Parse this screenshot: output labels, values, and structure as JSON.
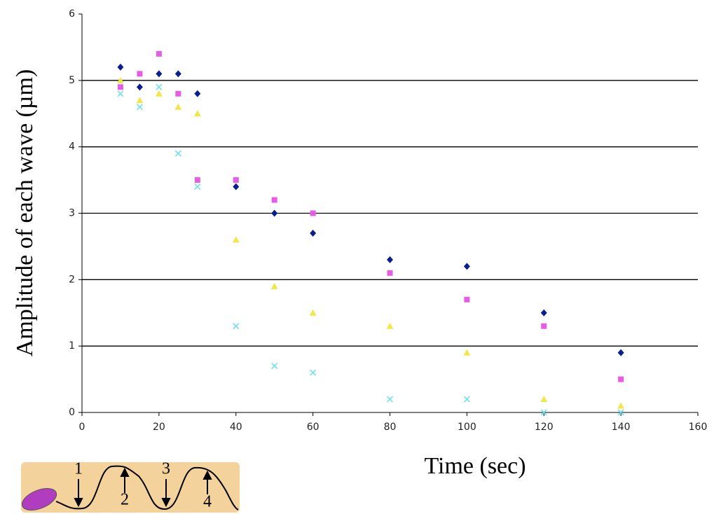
{
  "chart_data": {
    "type": "scatter",
    "x_label": "Time (sec)",
    "y_label": "Amplitude of each wave (µm)",
    "x": [
      10,
      15,
      20,
      25,
      30,
      40,
      50,
      60,
      80,
      100,
      120,
      140
    ],
    "series": [
      {
        "color": "#0a1f8f",
        "marker": "diamond",
        "values": [
          5.2,
          4.9,
          5.1,
          5.1,
          4.8,
          3.4,
          3.0,
          2.7,
          2.3,
          2.2,
          1.5,
          0.9
        ]
      },
      {
        "color": "#e65ce6",
        "marker": "square",
        "values": [
          4.9,
          5.1,
          5.4,
          4.8,
          3.5,
          3.5,
          3.2,
          3.0,
          2.1,
          1.7,
          1.3,
          0.5
        ]
      },
      {
        "color": "#f2e64a",
        "marker": "triangle",
        "values": [
          5.0,
          4.7,
          4.8,
          4.6,
          4.5,
          2.6,
          1.9,
          1.5,
          1.3,
          0.9,
          0.2,
          0.1
        ]
      },
      {
        "color": "#6fe0ee",
        "marker": "cross",
        "values": [
          4.8,
          4.6,
          4.9,
          3.9,
          3.4,
          1.3,
          0.7,
          0.6,
          0.2,
          0.2,
          0.0,
          0.0
        ]
      }
    ],
    "xlim": [
      0,
      160
    ],
    "xticks": [
      0,
      20,
      40,
      60,
      80,
      100,
      120,
      140,
      160
    ],
    "ylim": [
      0,
      6
    ],
    "yticks": [
      0,
      1,
      2,
      3,
      4,
      5,
      6
    ],
    "grid": true
  },
  "inset": {
    "labels": [
      "1",
      "2",
      "3",
      "4"
    ]
  }
}
